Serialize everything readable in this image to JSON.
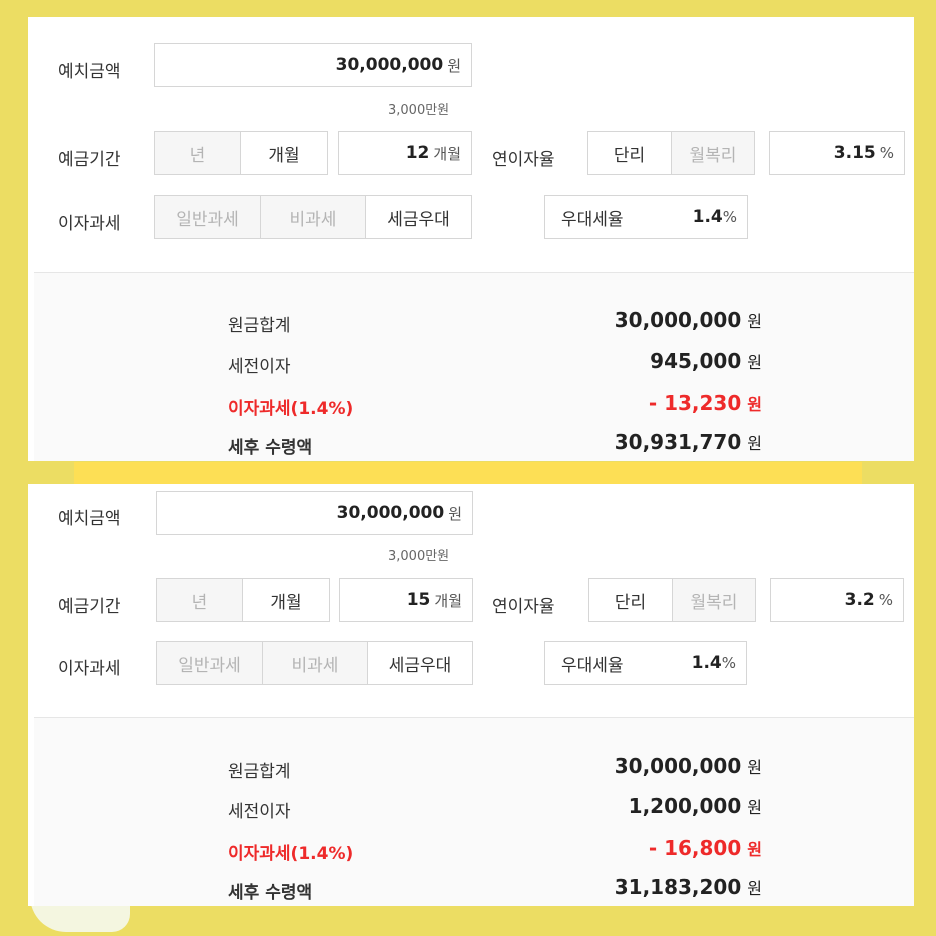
{
  "panels": [
    {
      "deposit_label": "예치금액",
      "deposit_value": "30,000,000",
      "deposit_unit": "원",
      "deposit_hint": "3,000만원",
      "period_label": "예금기간",
      "period_options": [
        "년",
        "개월"
      ],
      "period_value": "12",
      "period_unit": "개월",
      "rate_label": "연이자율",
      "rate_options": [
        "단리",
        "월복리"
      ],
      "rate_value": "3.15",
      "rate_unit": "%",
      "tax_label": "이자과세",
      "tax_options": [
        "일반과세",
        "비과세",
        "세금우대"
      ],
      "pref_label": "우대세율",
      "pref_value": "1.4",
      "pref_unit": "%",
      "principal_label": "원금합계",
      "principal_value": "30,000,000",
      "pretax_label": "세전이자",
      "pretax_value": "945,000",
      "taxamt_label": "이자과세(1.4%)",
      "taxamt_value": "- 13,230",
      "net_label": "세후 수령액",
      "net_value": "30,931,770",
      "won": "원"
    },
    {
      "deposit_label": "예치금액",
      "deposit_value": "30,000,000",
      "deposit_unit": "원",
      "deposit_hint": "3,000만원",
      "period_label": "예금기간",
      "period_options": [
        "년",
        "개월"
      ],
      "period_value": "15",
      "period_unit": "개월",
      "rate_label": "연이자율",
      "rate_options": [
        "단리",
        "월복리"
      ],
      "rate_value": "3.2",
      "rate_unit": "%",
      "tax_label": "이자과세",
      "tax_options": [
        "일반과세",
        "비과세",
        "세금우대"
      ],
      "pref_label": "우대세율",
      "pref_value": "1.4",
      "pref_unit": "%",
      "principal_label": "원금합계",
      "principal_value": "30,000,000",
      "pretax_label": "세전이자",
      "pretax_value": "1,200,000",
      "taxamt_label": "이자과세(1.4%)",
      "taxamt_value": "- 16,800",
      "net_label": "세후 수령액",
      "net_value": "31,183,200",
      "won": "원"
    }
  ],
  "colors": {
    "background": "#ecdd63",
    "tax_red": "#ee2a2a",
    "band": "#fddf55"
  }
}
